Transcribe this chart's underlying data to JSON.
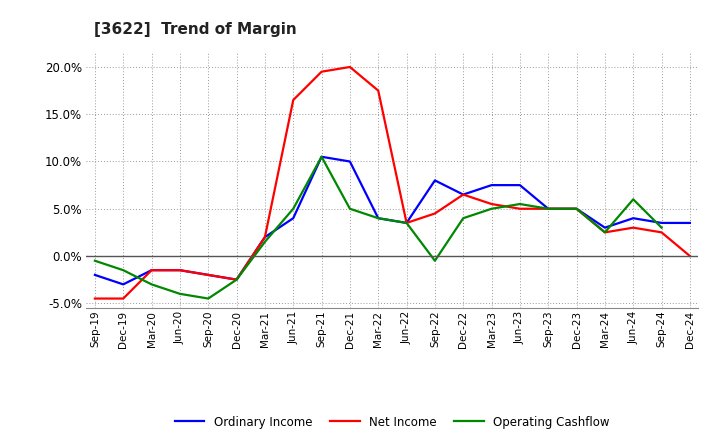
{
  "title": "[3622]  Trend of Margin",
  "x_labels": [
    "Sep-19",
    "Dec-19",
    "Mar-20",
    "Jun-20",
    "Sep-20",
    "Dec-20",
    "Mar-21",
    "Jun-21",
    "Sep-21",
    "Dec-21",
    "Mar-22",
    "Jun-22",
    "Sep-22",
    "Dec-22",
    "Mar-23",
    "Jun-23",
    "Sep-23",
    "Dec-23",
    "Mar-24",
    "Jun-24",
    "Sep-24",
    "Dec-24"
  ],
  "ordinary_income": [
    -2.0,
    -3.0,
    -1.5,
    -1.5,
    -2.0,
    -2.5,
    2.0,
    4.0,
    10.5,
    10.0,
    4.0,
    3.5,
    8.0,
    6.5,
    7.5,
    7.5,
    5.0,
    5.0,
    3.0,
    4.0,
    3.5,
    3.5
  ],
  "net_income": [
    -4.5,
    -4.5,
    -1.5,
    -1.5,
    -2.0,
    -2.5,
    2.0,
    16.5,
    19.5,
    20.0,
    17.5,
    3.5,
    4.5,
    6.5,
    5.5,
    5.0,
    5.0,
    5.0,
    2.5,
    3.0,
    2.5,
    0.0
  ],
  "operating_cashflow": [
    -0.5,
    -1.5,
    -3.0,
    -4.0,
    -4.5,
    -2.5,
    1.5,
    5.0,
    10.5,
    5.0,
    4.0,
    3.5,
    -0.5,
    4.0,
    5.0,
    5.5,
    5.0,
    5.0,
    2.5,
    6.0,
    3.0,
    null
  ],
  "ylim": [
    -5.5,
    21.5
  ],
  "yticks": [
    -5.0,
    0.0,
    5.0,
    10.0,
    15.0,
    20.0
  ],
  "colors": {
    "ordinary_income": "#0000ff",
    "net_income": "#ff0000",
    "operating_cashflow": "#008800"
  },
  "legend_labels": [
    "Ordinary Income",
    "Net Income",
    "Operating Cashflow"
  ],
  "background_color": "#ffffff",
  "grid_color": "#999999",
  "zero_line_color": "#555555"
}
